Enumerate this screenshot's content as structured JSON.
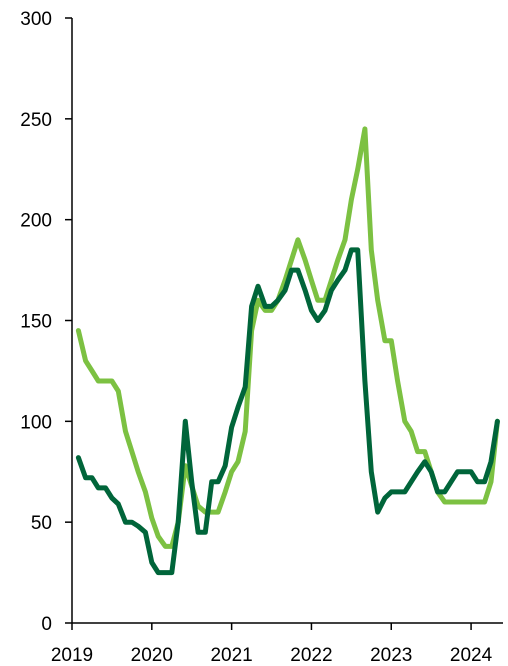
{
  "chart_data": {
    "type": "line",
    "title": "",
    "xlabel": "",
    "ylabel": "",
    "xlim": [
      2019,
      2024.4
    ],
    "ylim": [
      0,
      300
    ],
    "y_ticks": [
      0,
      50,
      100,
      150,
      200,
      250,
      300
    ],
    "x_ticks": [
      2019,
      2020,
      2021,
      2022,
      2023,
      2024
    ],
    "x_tick_labels": [
      "2019",
      "2020",
      "2021",
      "2022",
      "2023",
      "2024"
    ],
    "y_tick_labels": [
      "0",
      "50",
      "100",
      "150",
      "200",
      "250",
      "300"
    ],
    "grid": false,
    "legend": "none",
    "series": [
      {
        "color": "#7cc142",
        "x": [
          2019.08,
          2019.17,
          2019.25,
          2019.33,
          2019.42,
          2019.5,
          2019.58,
          2019.67,
          2019.75,
          2019.83,
          2019.92,
          2020.0,
          2020.08,
          2020.17,
          2020.25,
          2020.33,
          2020.42,
          2020.5,
          2020.58,
          2020.67,
          2020.75,
          2020.83,
          2020.92,
          2021.0,
          2021.08,
          2021.17,
          2021.25,
          2021.33,
          2021.42,
          2021.5,
          2021.58,
          2021.67,
          2021.75,
          2021.83,
          2021.92,
          2022.0,
          2022.08,
          2022.17,
          2022.25,
          2022.33,
          2022.42,
          2022.5,
          2022.58,
          2022.67,
          2022.75,
          2022.83,
          2022.92,
          2023.0,
          2023.08,
          2023.17,
          2023.25,
          2023.33,
          2023.42,
          2023.5,
          2023.58,
          2023.67,
          2023.75,
          2023.83,
          2023.92,
          2024.0,
          2024.08,
          2024.17,
          2024.25,
          2024.33
        ],
        "y": [
          145,
          130,
          125,
          120,
          120,
          120,
          115,
          95,
          85,
          75,
          65,
          52,
          43,
          38,
          38,
          50,
          78,
          68,
          58,
          55,
          55,
          55,
          65,
          75,
          80,
          95,
          145,
          160,
          155,
          155,
          160,
          170,
          180,
          190,
          180,
          170,
          160,
          160,
          170,
          180,
          190,
          210,
          225,
          245,
          185,
          160,
          140,
          140,
          120,
          100,
          95,
          85,
          85,
          75,
          65,
          60,
          60,
          60,
          60,
          60,
          60,
          60,
          70,
          100
        ]
      },
      {
        "color": "#00653a",
        "x": [
          2019.08,
          2019.17,
          2019.25,
          2019.33,
          2019.42,
          2019.5,
          2019.58,
          2019.67,
          2019.75,
          2019.83,
          2019.92,
          2020.0,
          2020.08,
          2020.17,
          2020.25,
          2020.33,
          2020.42,
          2020.5,
          2020.58,
          2020.67,
          2020.75,
          2020.83,
          2020.92,
          2021.0,
          2021.08,
          2021.17,
          2021.25,
          2021.33,
          2021.42,
          2021.5,
          2021.58,
          2021.67,
          2021.75,
          2021.83,
          2021.92,
          2022.0,
          2022.08,
          2022.17,
          2022.25,
          2022.33,
          2022.42,
          2022.5,
          2022.58,
          2022.67,
          2022.75,
          2022.83,
          2022.92,
          2023.0,
          2023.08,
          2023.17,
          2023.25,
          2023.33,
          2023.42,
          2023.5,
          2023.58,
          2023.67,
          2023.75,
          2023.83,
          2023.92,
          2024.0,
          2024.08,
          2024.17,
          2024.25,
          2024.33
        ],
        "y": [
          82,
          72,
          72,
          67,
          67,
          62,
          59,
          50,
          50,
          48,
          45,
          30,
          25,
          25,
          25,
          50,
          100,
          70,
          45,
          45,
          70,
          70,
          78,
          97,
          107,
          117,
          157,
          167,
          157,
          157,
          160,
          165,
          175,
          175,
          165,
          155,
          150,
          155,
          165,
          170,
          175,
          185,
          185,
          120,
          75,
          55,
          62,
          65,
          65,
          65,
          70,
          75,
          80,
          75,
          65,
          65,
          70,
          75,
          75,
          75,
          70,
          70,
          80,
          100
        ]
      }
    ]
  }
}
